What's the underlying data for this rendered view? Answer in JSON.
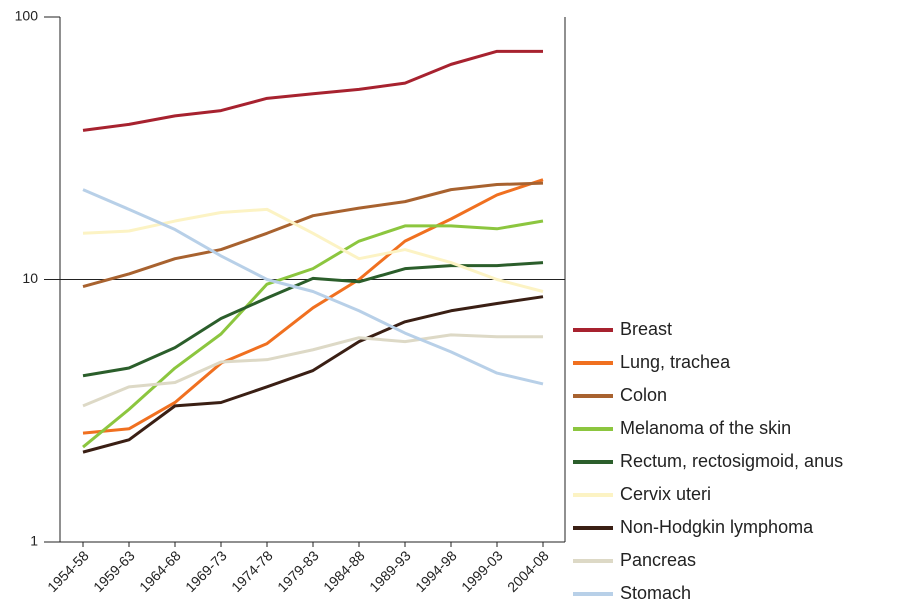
{
  "chart_data": {
    "type": "line",
    "log_scale": true,
    "categories": [
      "1954-58",
      "1959-63",
      "1964-68",
      "1969-73",
      "1974-78",
      "1979-83",
      "1984-88",
      "1989-93",
      "1994-98",
      "1999-03",
      "2004-08"
    ],
    "ylim": [
      1,
      100
    ],
    "yticks": [
      1,
      10,
      100
    ],
    "grid": true,
    "legend": "right",
    "series": [
      {
        "name": "Breast",
        "color": "#a7222f",
        "values": [
          37,
          39,
          42,
          44,
          49,
          51,
          53,
          56,
          66,
          74,
          74
        ]
      },
      {
        "name": "Lung, trachea",
        "color": "#f07020",
        "values": [
          2.6,
          2.7,
          3.4,
          4.8,
          5.7,
          7.8,
          10,
          14,
          17,
          21,
          24
        ]
      },
      {
        "name": "Colon",
        "color": "#a8622f",
        "values": [
          9.4,
          10.5,
          12,
          13,
          15,
          17.5,
          18.7,
          19.8,
          22,
          23,
          23.3
        ]
      },
      {
        "name": "Melanoma of the skin",
        "color": "#8cc63f",
        "values": [
          2.3,
          3.2,
          4.6,
          6.2,
          9.6,
          11,
          14,
          16,
          16,
          15.6,
          16.7
        ]
      },
      {
        "name": "Rectum, rectosigmoid, anus",
        "color": "#2b5e2b",
        "values": [
          4.3,
          4.6,
          5.5,
          7.1,
          8.5,
          10.1,
          9.8,
          11,
          11.3,
          11.3,
          11.6
        ]
      },
      {
        "name": "Cervix uteri",
        "color": "#fcf3c4",
        "values": [
          15,
          15.3,
          16.7,
          18,
          18.5,
          15,
          12,
          13,
          11.6,
          10,
          9
        ]
      },
      {
        "name": "Non-Hodgkin lymphoma",
        "color": "#3a1f14",
        "values": [
          2.2,
          2.45,
          3.3,
          3.4,
          3.9,
          4.5,
          5.8,
          6.9,
          7.6,
          8.1,
          8.6
        ]
      },
      {
        "name": "Pancreas",
        "color": "#ddd9c6",
        "values": [
          3.3,
          3.9,
          4.05,
          4.85,
          4.95,
          5.4,
          6,
          5.8,
          6.15,
          6.05,
          6.05
        ]
      },
      {
        "name": "Stomach",
        "color": "#b8d0e8",
        "values": [
          22,
          18.5,
          15.5,
          12.3,
          10,
          9,
          7.6,
          6.25,
          5.3,
          4.4,
          4
        ]
      }
    ]
  }
}
